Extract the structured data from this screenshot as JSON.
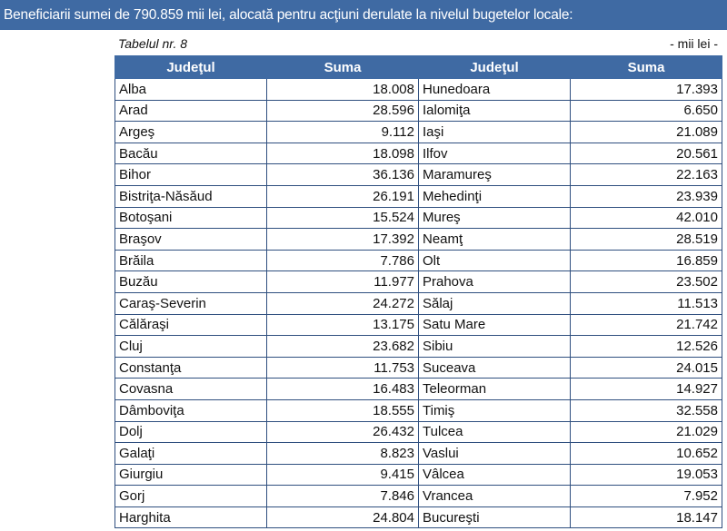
{
  "header": {
    "title": "Beneficiarii sumei de 790.859 mii lei, alocată pentru acţiuni derulate la nivelul bugetelor locale:"
  },
  "table": {
    "caption": "Tabelul nr. 8",
    "unit": "- mii lei -",
    "columns": [
      "Judeţul",
      "Suma",
      "Judeţul",
      "Suma"
    ],
    "rows": [
      [
        "Alba",
        "18.008",
        "Hunedoara",
        "17.393"
      ],
      [
        "Arad",
        "28.596",
        "Ialomiţa",
        "6.650"
      ],
      [
        "Argeş",
        "9.112",
        "Iaşi",
        "21.089"
      ],
      [
        "Bacău",
        "18.098",
        "Ilfov",
        "20.561"
      ],
      [
        "Bihor",
        "36.136",
        "Maramureş",
        "22.163"
      ],
      [
        "Bistriţa-Năsăud",
        "26.191",
        "Mehedinţi",
        "23.939"
      ],
      [
        "Botoşani",
        "15.524",
        "Mureş",
        "42.010"
      ],
      [
        "Braşov",
        "17.392",
        "Neamţ",
        "28.519"
      ],
      [
        "Brăila",
        "7.786",
        "Olt",
        "16.859"
      ],
      [
        "Buzău",
        "11.977",
        "Prahova",
        "23.502"
      ],
      [
        "Caraş-Severin",
        "24.272",
        "Sălaj",
        "11.513"
      ],
      [
        "Călăraşi",
        "13.175",
        "Satu Mare",
        "21.742"
      ],
      [
        "Cluj",
        "23.682",
        "Sibiu",
        "12.526"
      ],
      [
        "Constanţa",
        "11.753",
        "Suceava",
        "24.015"
      ],
      [
        "Covasna",
        "16.483",
        "Teleorman",
        "14.927"
      ],
      [
        "Dâmboviţa",
        "18.555",
        "Timiş",
        "32.558"
      ],
      [
        "Dolj",
        "26.432",
        "Tulcea",
        "21.029"
      ],
      [
        "Galaţi",
        "8.823",
        "Vaslui",
        "10.652"
      ],
      [
        "Giurgiu",
        "9.415",
        "Vâlcea",
        "19.053"
      ],
      [
        "Gorj",
        "7.846",
        "Vrancea",
        "7.952"
      ],
      [
        "Harghita",
        "24.804",
        "Bucureşti",
        "18.147"
      ]
    ]
  },
  "colors": {
    "header_bg": "#3f6aa3",
    "header_text": "#ffffff",
    "border": "#2f4f7f"
  }
}
